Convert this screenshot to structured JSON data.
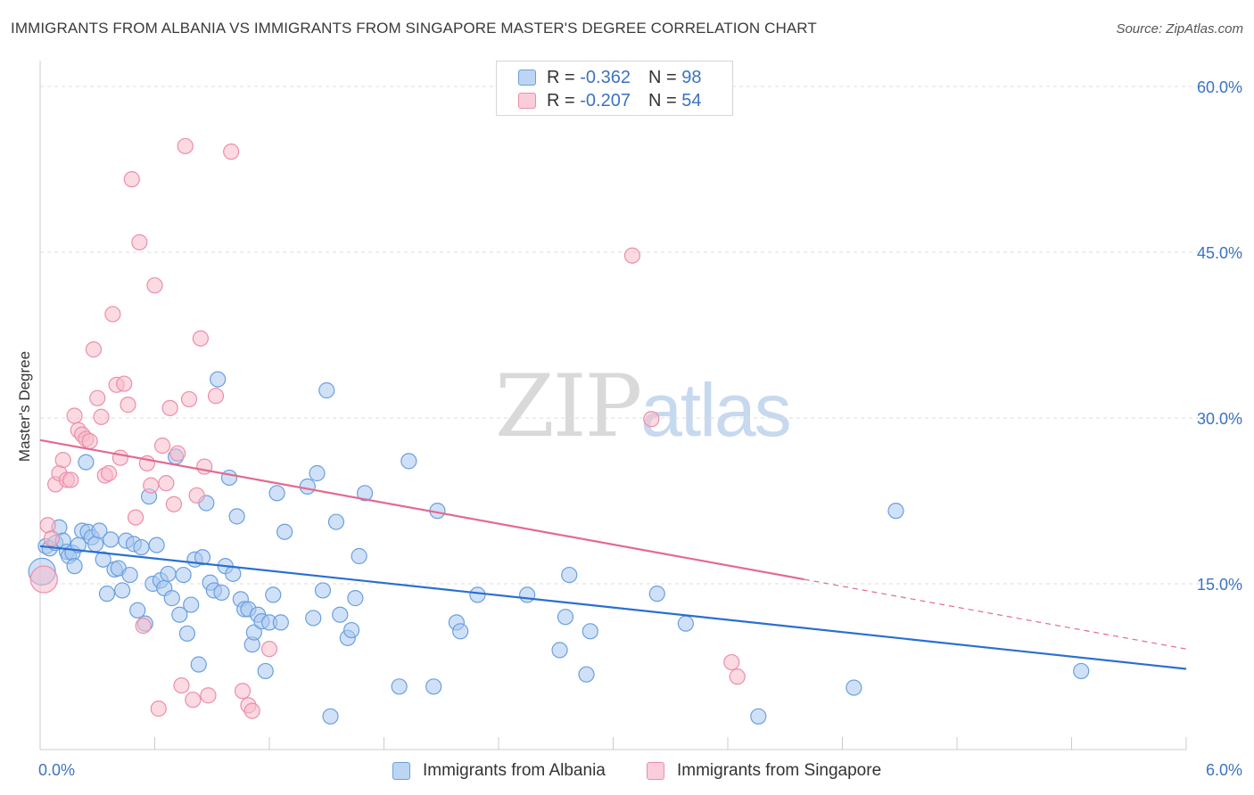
{
  "title": "IMMIGRANTS FROM ALBANIA VS IMMIGRANTS FROM SINGAPORE MASTER'S DEGREE CORRELATION CHART",
  "source": "Source: ZipAtlas.com",
  "watermark": {
    "zip": "ZIP",
    "atlas": "atlas"
  },
  "legend": {
    "albania": {
      "r_label": "R = ",
      "r_value": "-0.362",
      "n_label": "N = ",
      "n_value": "98"
    },
    "singapore": {
      "r_label": "R = ",
      "r_value": "-0.207",
      "n_label": "N = ",
      "n_value": "54"
    }
  },
  "colors": {
    "albania_fill": "#a9c8f0",
    "albania_stroke": "#6a9fe0",
    "albania_line": "#2a6fd1",
    "singapore_fill": "#f7bccb",
    "singapore_stroke": "#ec8eaa",
    "singapore_line": "#e36a91",
    "tick_label": "#3b73c4",
    "grid": "#dddddd"
  },
  "chart_data": {
    "type": "scatter",
    "title": "IMMIGRANTS FROM ALBANIA VS IMMIGRANTS FROM SINGAPORE MASTER'S DEGREE CORRELATION CHART",
    "xlabel": "",
    "ylabel": "Master's Degree",
    "xlim": [
      0,
      6
    ],
    "ylim": [
      0,
      60
    ],
    "x_tick_labels": [
      "0.0%",
      "6.0%"
    ],
    "y_ticks": [
      15,
      30,
      45,
      60
    ],
    "y_tick_labels": [
      "15.0%",
      "30.0%",
      "45.0%",
      "60.0%"
    ],
    "grid": true,
    "legend_placement": "bottom",
    "series": [
      {
        "name": "Immigrants from Albania",
        "trend": {
          "x": [
            0.0,
            6.0
          ],
          "y": [
            18.4,
            7.3
          ],
          "dashed_from": null
        },
        "points": [
          [
            0.03,
            18.4
          ],
          [
            0.05,
            18.2
          ],
          [
            0.08,
            18.7
          ],
          [
            0.1,
            20.1
          ],
          [
            0.12,
            18.9
          ],
          [
            0.14,
            17.9
          ],
          [
            0.15,
            17.5
          ],
          [
            0.17,
            17.8
          ],
          [
            0.18,
            16.6
          ],
          [
            0.2,
            18.5
          ],
          [
            0.22,
            19.8
          ],
          [
            0.24,
            26.0
          ],
          [
            0.25,
            19.7
          ],
          [
            0.27,
            19.2
          ],
          [
            0.29,
            18.6
          ],
          [
            0.31,
            19.8
          ],
          [
            0.33,
            17.2
          ],
          [
            0.35,
            14.1
          ],
          [
            0.37,
            19.0
          ],
          [
            0.39,
            16.3
          ],
          [
            0.41,
            16.4
          ],
          [
            0.43,
            14.4
          ],
          [
            0.45,
            18.9
          ],
          [
            0.47,
            15.8
          ],
          [
            0.49,
            18.6
          ],
          [
            0.51,
            12.6
          ],
          [
            0.53,
            18.3
          ],
          [
            0.55,
            11.4
          ],
          [
            0.57,
            22.9
          ],
          [
            0.59,
            15.0
          ],
          [
            0.61,
            18.5
          ],
          [
            0.63,
            15.3
          ],
          [
            0.65,
            14.6
          ],
          [
            0.67,
            15.9
          ],
          [
            0.69,
            13.7
          ],
          [
            0.71,
            26.5
          ],
          [
            0.73,
            12.2
          ],
          [
            0.75,
            15.8
          ],
          [
            0.77,
            10.5
          ],
          [
            0.79,
            13.1
          ],
          [
            0.81,
            17.2
          ],
          [
            0.83,
            7.7
          ],
          [
            0.85,
            17.4
          ],
          [
            0.87,
            22.3
          ],
          [
            0.89,
            15.1
          ],
          [
            0.91,
            14.4
          ],
          [
            0.93,
            33.5
          ],
          [
            0.95,
            14.2
          ],
          [
            0.97,
            16.6
          ],
          [
            0.99,
            24.6
          ],
          [
            1.01,
            15.9
          ],
          [
            1.03,
            21.1
          ],
          [
            1.05,
            13.6
          ],
          [
            1.07,
            12.7
          ],
          [
            1.09,
            12.7
          ],
          [
            1.11,
            9.5
          ],
          [
            1.12,
            10.6
          ],
          [
            1.14,
            12.2
          ],
          [
            1.16,
            11.6
          ],
          [
            1.18,
            7.1
          ],
          [
            1.2,
            11.5
          ],
          [
            1.22,
            14.0
          ],
          [
            1.24,
            23.2
          ],
          [
            1.26,
            11.5
          ],
          [
            1.28,
            19.7
          ],
          [
            1.4,
            23.8
          ],
          [
            1.43,
            11.9
          ],
          [
            1.45,
            25.0
          ],
          [
            1.48,
            14.4
          ],
          [
            1.5,
            32.5
          ],
          [
            1.52,
            3.0
          ],
          [
            1.55,
            20.6
          ],
          [
            1.57,
            12.2
          ],
          [
            1.61,
            10.1
          ],
          [
            1.63,
            10.8
          ],
          [
            1.65,
            13.7
          ],
          [
            1.67,
            17.5
          ],
          [
            1.7,
            23.2
          ],
          [
            1.88,
            5.7
          ],
          [
            1.93,
            26.1
          ],
          [
            2.06,
            5.7
          ],
          [
            2.08,
            21.6
          ],
          [
            2.18,
            11.5
          ],
          [
            2.2,
            10.7
          ],
          [
            2.29,
            14.0
          ],
          [
            2.55,
            14.0
          ],
          [
            2.72,
            9.0
          ],
          [
            2.75,
            12.0
          ],
          [
            2.77,
            15.8
          ],
          [
            2.86,
            6.8
          ],
          [
            2.88,
            10.7
          ],
          [
            3.23,
            14.1
          ],
          [
            3.38,
            11.4
          ],
          [
            3.76,
            3.0
          ],
          [
            4.26,
            5.6
          ],
          [
            4.48,
            21.6
          ],
          [
            5.45,
            7.1
          ],
          [
            0.01,
            16.1
          ]
        ]
      },
      {
        "name": "Immigrants from Singapore",
        "trend": {
          "x": [
            0.0,
            6.0
          ],
          "y": [
            28.0,
            9.1
          ],
          "dashed_from": 4.0
        },
        "points": [
          [
            0.02,
            15.4
          ],
          [
            0.04,
            20.3
          ],
          [
            0.06,
            19.1
          ],
          [
            0.08,
            24.0
          ],
          [
            0.1,
            25.0
          ],
          [
            0.12,
            26.2
          ],
          [
            0.14,
            24.4
          ],
          [
            0.16,
            24.4
          ],
          [
            0.18,
            30.2
          ],
          [
            0.2,
            28.9
          ],
          [
            0.22,
            28.5
          ],
          [
            0.24,
            28.1
          ],
          [
            0.26,
            27.9
          ],
          [
            0.28,
            36.2
          ],
          [
            0.3,
            31.8
          ],
          [
            0.32,
            30.1
          ],
          [
            0.34,
            24.8
          ],
          [
            0.36,
            25.0
          ],
          [
            0.38,
            39.4
          ],
          [
            0.4,
            33.0
          ],
          [
            0.42,
            26.4
          ],
          [
            0.44,
            33.1
          ],
          [
            0.46,
            31.2
          ],
          [
            0.48,
            51.6
          ],
          [
            0.5,
            21.0
          ],
          [
            0.52,
            45.9
          ],
          [
            0.54,
            11.2
          ],
          [
            0.56,
            25.9
          ],
          [
            0.58,
            23.9
          ],
          [
            0.6,
            42.0
          ],
          [
            0.62,
            3.7
          ],
          [
            0.64,
            27.5
          ],
          [
            0.66,
            24.1
          ],
          [
            0.68,
            30.9
          ],
          [
            0.7,
            22.2
          ],
          [
            0.72,
            26.8
          ],
          [
            0.74,
            5.8
          ],
          [
            0.76,
            54.6
          ],
          [
            0.78,
            31.7
          ],
          [
            0.8,
            4.5
          ],
          [
            0.82,
            23.0
          ],
          [
            0.84,
            37.2
          ],
          [
            0.86,
            25.6
          ],
          [
            0.88,
            4.9
          ],
          [
            0.92,
            32.0
          ],
          [
            1.0,
            54.1
          ],
          [
            1.06,
            5.3
          ],
          [
            1.09,
            4.0
          ],
          [
            1.11,
            3.5
          ],
          [
            1.2,
            9.1
          ],
          [
            3.1,
            44.7
          ],
          [
            3.2,
            29.9
          ],
          [
            3.62,
            7.9
          ],
          [
            3.65,
            6.6
          ]
        ]
      }
    ]
  }
}
